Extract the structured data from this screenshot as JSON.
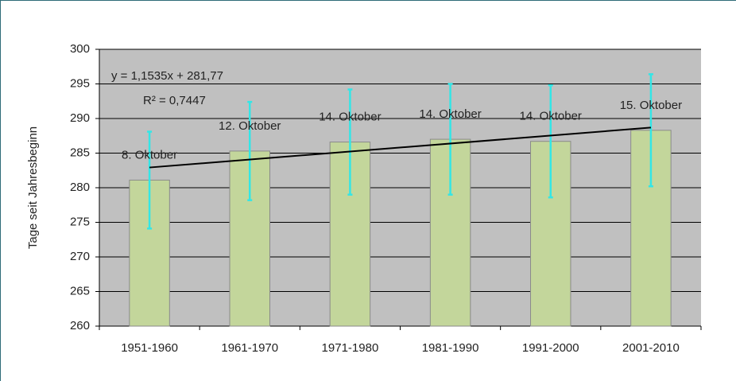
{
  "chart_data": {
    "type": "bar",
    "y_label": "Tage seit Jahresbeginn",
    "categories": [
      "1951-1960",
      "1961-1970",
      "1971-1980",
      "1981-1990",
      "1991-2000",
      "2001-2010"
    ],
    "values": [
      281.1,
      285.3,
      286.6,
      287.0,
      286.7,
      288.3
    ],
    "value_labels": [
      "8. Oktober",
      "12. Oktober",
      "14. Oktober",
      "14. Oktober",
      "14. Oktober",
      "15. Oktober"
    ],
    "errors": [
      7.0,
      7.1,
      7.6,
      8.0,
      8.1,
      8.1
    ],
    "color": "#c3d69b",
    "error_color": "#33e6e6",
    "trendline": {
      "equation": "y = 1,1535x + 281,77",
      "r2": "R² = 0,7447",
      "slope": 1.1535,
      "intercept": 281.77,
      "color": "#000000"
    },
    "ylim": [
      260,
      300
    ],
    "yticks": [
      260,
      265,
      270,
      275,
      280,
      285,
      290,
      295,
      300
    ],
    "grid": true
  }
}
